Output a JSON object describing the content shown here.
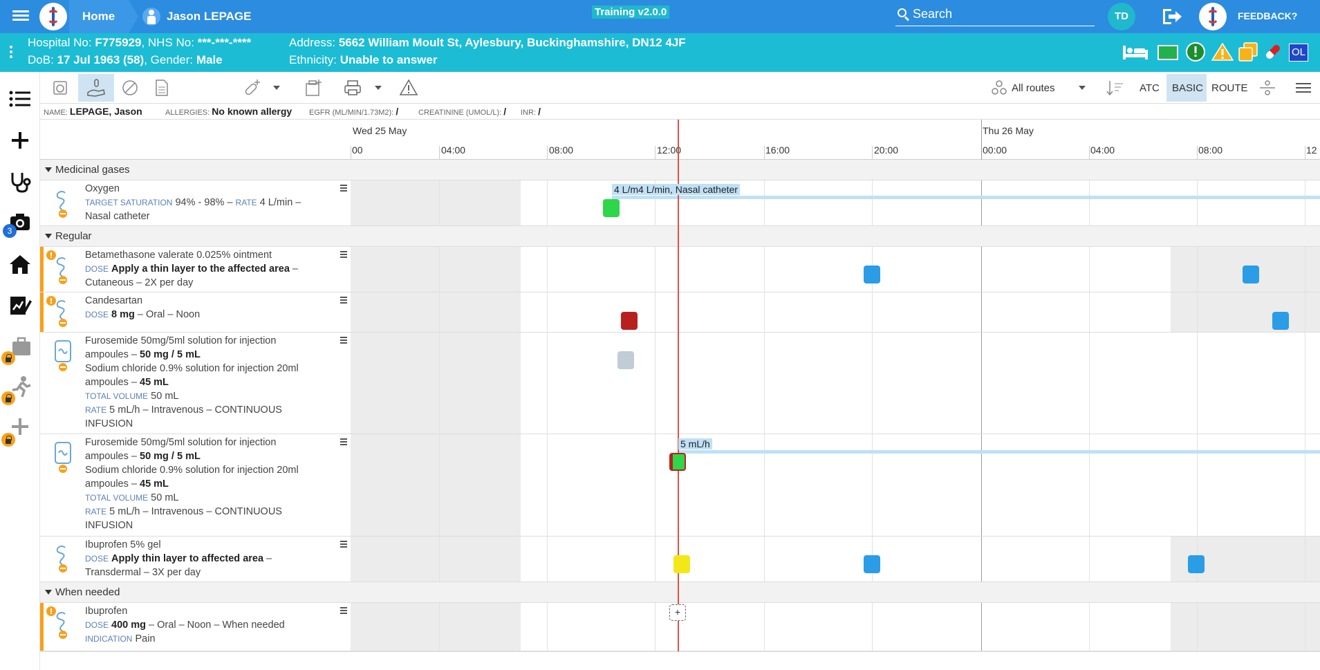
{
  "topbar": {
    "home_label": "Home",
    "patient_name": "Jason LEPAGE",
    "training_badge": "Training v2.0.0",
    "search_label": "Search",
    "user_initials": "TD",
    "feedback_label": "FEEDBACK?"
  },
  "banner": {
    "hospital_label": "Hospital No: ",
    "hospital_no": "F775929",
    "nhs_label": ", NHS No: ",
    "nhs_no": "***-***-****",
    "dob_label": "DoB: ",
    "dob": "17 Jul 1963 (58)",
    "gender_label": ", Gender: ",
    "gender": "Male",
    "address_label": "Address: ",
    "address": "5662 William Moult St, Aylesbury, Buckinghamshire, DN12 4JF",
    "ethnicity_label": "Ethnicity: ",
    "ethnicity": "Unable to answer",
    "initials_badge": "OL"
  },
  "left_rail": {
    "camera_badge": "3"
  },
  "toolbar": {
    "route_filter": "All routes",
    "view_atc": "ATC",
    "view_basic": "BASIC",
    "view_route": "ROUTE"
  },
  "info_strip": {
    "name_label": "Name:",
    "name_value": "LEPAGE, Jason",
    "allergies_label": "Allergies:",
    "allergies_value": "No known allergy",
    "egfr_label": "eGFR (mL/min/1.73m2):",
    "egfr_value": "/",
    "creatinine_label": "Creatinine (umol/L):",
    "creatinine_value": "/",
    "inr_label": "INR:",
    "inr_value": "/"
  },
  "timeline": {
    "days": [
      "Wed 25 May",
      "Thu 26 May"
    ],
    "hours": [
      "00",
      "04:00",
      "08:00",
      "12:00",
      "16:00",
      "20:00",
      "00:00",
      "04:00",
      "08:00",
      "12"
    ]
  },
  "sections": {
    "medicinal_gases": "Medicinal gases",
    "regular": "Regular",
    "when_needed": "When needed"
  },
  "meds": {
    "oxygen": {
      "name": "Oxygen",
      "target_label": "Target saturation",
      "target_value": "94% - 98%",
      "sep1": " – ",
      "rate_label": "Rate",
      "rate_value": "4 L/min",
      "sep2": " –",
      "route": "Nasal catheter",
      "infusion_label": "4 L/m4 L/min, Nasal catheter"
    },
    "betamethasone": {
      "name": "Betamethasone valerate 0.025% ointment",
      "dose_label": "Dose",
      "dose_value": "Apply a thin layer to the affected area",
      "sep": " –",
      "route_freq": "Cutaneous – 2X per day"
    },
    "candesartan": {
      "name": "Candesartan",
      "dose_label": "Dose",
      "dose_value": "8 mg",
      "route_freq": " – Oral – Noon"
    },
    "furosemide1": {
      "line1": "Furosemide 50mg/5ml solution for injection",
      "line2a": "ampoules – ",
      "line2b": "50 mg / 5 mL",
      "line3": "Sodium chloride 0.9% solution for injection 20ml",
      "line4a": "ampoules – ",
      "line4b": "45 mL",
      "vol_label": "Total volume",
      "vol_value": "50 mL",
      "rate_label": "Rate",
      "rate_value": "5 mL/h – Intravenous – CONTINUOUS",
      "rate_value2": "INFUSION"
    },
    "furosemide2": {
      "line1": "Furosemide 50mg/5ml solution for injection",
      "line2a": "ampoules – ",
      "line2b": "50 mg / 5 mL",
      "line3": "Sodium chloride 0.9% solution for injection 20ml",
      "line4a": "ampoules – ",
      "line4b": "45 mL",
      "vol_label": "Total volume",
      "vol_value": "50 mL",
      "rate_label": "Rate",
      "rate_value": "5 mL/h – Intravenous – CONTINUOUS",
      "rate_value2": "INFUSION",
      "infusion_label": "5 mL/h"
    },
    "ibuprofen_gel": {
      "name": "Ibuprofen 5% gel",
      "dose_label": "Dose",
      "dose_value": "Apply thin layer to affected area",
      "sep": " –",
      "route_freq": "Transdermal – 3X per day"
    },
    "ibuprofen": {
      "name": "Ibuprofen",
      "dose_label": "Dose",
      "dose_value": "400 mg",
      "route_freq": " – Oral – Noon – When needed",
      "indication_label": "Indication",
      "indication_value": "Pain"
    }
  },
  "colors": {
    "topbar": "#2c8ce0",
    "banner": "#1cbcd4",
    "given": "#2ed64a",
    "due": "#2a9de6",
    "missed": "#b82020",
    "pending": "#c0ccd6",
    "partial": "#f2e817",
    "now_line": "#e0504a",
    "accent": "#f7a11a"
  },
  "add_label": "+"
}
